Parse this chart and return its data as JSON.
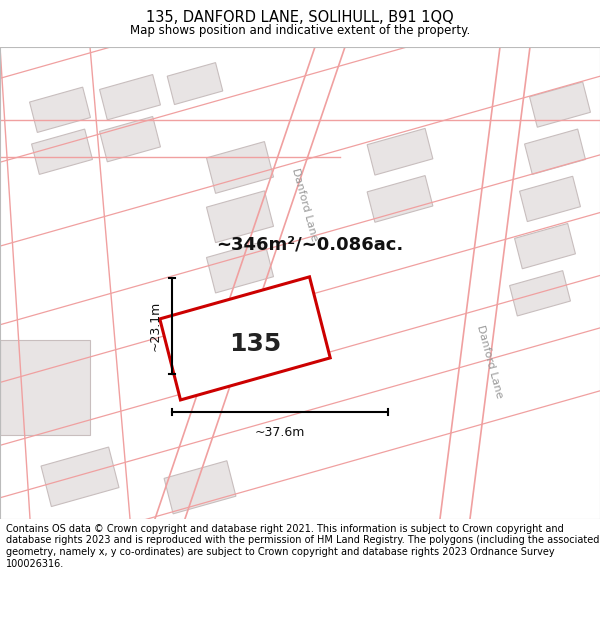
{
  "title": "135, DANFORD LANE, SOLIHULL, B91 1QQ",
  "subtitle": "Map shows position and indicative extent of the property.",
  "area_text": "~346m²/~0.086ac.",
  "property_number": "135",
  "dim_width": "~37.6m",
  "dim_height": "~23.1m",
  "footer": "Contains OS data © Crown copyright and database right 2021. This information is subject to Crown copyright and database rights 2023 and is reproduced with the permission of HM Land Registry. The polygons (including the associated geometry, namely x, y co-ordinates) are subject to Crown copyright and database rights 2023 Ordnance Survey 100026316.",
  "map_bg": "#ffffff",
  "road_line_color": "#f0a0a0",
  "building_fill": "#e8e4e4",
  "building_edge": "#c8bebe",
  "road_label_color": "#999999",
  "highlight_color": "#cc0000",
  "highlight_fill": "#ffffff",
  "title_fontsize": 10.5,
  "subtitle_fontsize": 8.5,
  "footer_fontsize": 7.0,
  "area_fontsize": 13,
  "dim_fontsize": 9,
  "prop_num_fontsize": 18
}
